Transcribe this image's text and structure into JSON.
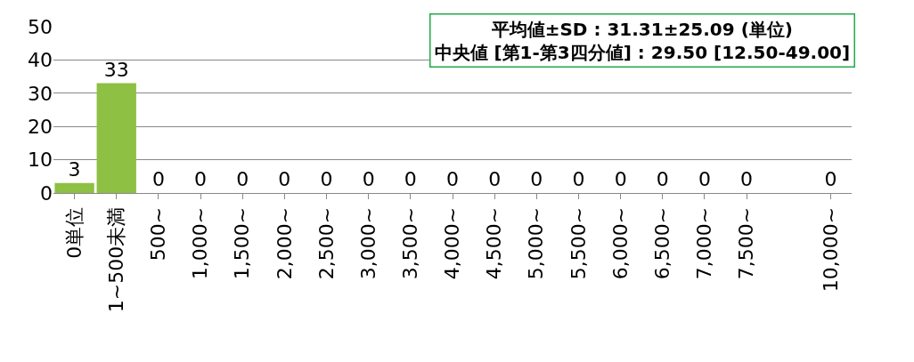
{
  "chart_data": {
    "type": "bar",
    "categories": [
      "0単位",
      "1~500未満",
      "500~",
      "1,000~",
      "1,500~",
      "2,000~",
      "2,500~",
      "3,000~",
      "3,500~",
      "4,000~",
      "4,500~",
      "5,000~",
      "5,500~",
      "6,000~",
      "6,500~",
      "7,000~",
      "7,500~",
      null,
      "10,000~"
    ],
    "values": [
      3,
      33,
      0,
      0,
      0,
      0,
      0,
      0,
      0,
      0,
      0,
      0,
      0,
      0,
      0,
      0,
      0,
      null,
      0
    ],
    "color": "#8dc043",
    "ylim": [
      0,
      50
    ],
    "yticks": [
      0,
      10,
      20,
      30,
      40,
      50
    ],
    "grid": "y",
    "legend": false,
    "data_labels": true,
    "annotations": [
      "平均値±SD : 31.31±25.09 (単位)\n中央値 [第1-第3四分値] : 29.50 [12.50-49.00]"
    ]
  }
}
